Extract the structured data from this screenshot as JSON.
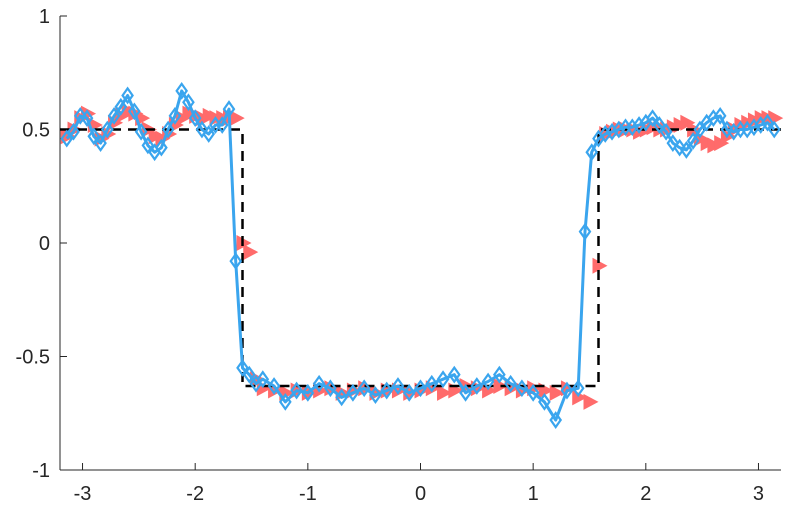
{
  "chart_data": {
    "type": "line",
    "title": "",
    "xlabel": "",
    "ylabel": "",
    "xlim": [
      -3.2,
      3.2
    ],
    "ylim": [
      -1,
      1
    ],
    "xticks": [
      -3,
      -2,
      -1,
      0,
      1,
      2,
      3
    ],
    "xtick_labels": [
      "-3",
      "-2",
      "-1",
      "0",
      "1",
      "2",
      "3"
    ],
    "yticks": [
      1,
      0.5,
      0,
      -0.5,
      -1
    ],
    "ytick_labels": [
      "1",
      "0.5",
      "0",
      "-0.5",
      "-1"
    ],
    "grid": false,
    "legend": "none",
    "series": [
      {
        "style": "dashed",
        "color": "#000000",
        "x": [
          -3.2,
          -1.58,
          -1.58,
          1.58,
          1.58,
          3.2
        ],
        "y": [
          0.5,
          0.5,
          -0.63,
          -0.63,
          0.5,
          0.5
        ]
      },
      {
        "style": "triangle-right-markers",
        "color": "#ff6b6b",
        "x": [
          -3.14,
          -3.08,
          -3.02,
          -2.96,
          -2.9,
          -2.84,
          -2.78,
          -2.72,
          -2.66,
          -2.6,
          -2.54,
          -2.48,
          -2.42,
          -2.36,
          -2.3,
          -2.24,
          -2.18,
          -2.12,
          -2.06,
          -2.0,
          -1.94,
          -1.88,
          -1.82,
          -1.76,
          -1.7,
          -1.64,
          -1.58,
          -1.52,
          -1.46,
          -1.4,
          -1.3,
          -1.2,
          -1.1,
          -1.0,
          -0.9,
          -0.8,
          -0.7,
          -0.6,
          -0.5,
          -0.4,
          -0.3,
          -0.2,
          -0.1,
          0.0,
          0.1,
          0.2,
          0.3,
          0.4,
          0.5,
          0.6,
          0.7,
          0.8,
          0.9,
          1.0,
          1.1,
          1.2,
          1.3,
          1.4,
          1.5,
          1.58,
          1.64,
          1.7,
          1.76,
          1.82,
          1.88,
          1.94,
          2.0,
          2.06,
          2.12,
          2.18,
          2.24,
          2.3,
          2.36,
          2.42,
          2.48,
          2.54,
          2.6,
          2.66,
          2.72,
          2.78,
          2.84,
          2.9,
          2.96,
          3.02,
          3.08,
          3.14
        ],
        "y": [
          0.47,
          0.5,
          0.55,
          0.57,
          0.52,
          0.46,
          0.48,
          0.53,
          0.56,
          0.58,
          0.57,
          0.55,
          0.5,
          0.47,
          0.46,
          0.48,
          0.52,
          0.55,
          0.57,
          0.56,
          0.55,
          0.56,
          0.55,
          0.55,
          0.55,
          0.55,
          0.0,
          -0.04,
          -0.6,
          -0.64,
          -0.65,
          -0.66,
          -0.65,
          -0.66,
          -0.65,
          -0.64,
          -0.66,
          -0.65,
          -0.64,
          -0.66,
          -0.65,
          -0.65,
          -0.66,
          -0.65,
          -0.64,
          -0.66,
          -0.65,
          -0.63,
          -0.64,
          -0.65,
          -0.63,
          -0.64,
          -0.65,
          -0.64,
          -0.65,
          -0.66,
          -0.64,
          -0.68,
          -0.7,
          -0.1,
          0.48,
          0.49,
          0.5,
          0.5,
          0.5,
          0.49,
          0.5,
          0.51,
          0.5,
          0.5,
          0.51,
          0.52,
          0.53,
          0.5,
          0.46,
          0.44,
          0.43,
          0.44,
          0.47,
          0.5,
          0.52,
          0.53,
          0.54,
          0.55,
          0.55,
          0.55
        ]
      },
      {
        "style": "solid-diamond-markers",
        "color": "#3aa5ee",
        "x": [
          -3.14,
          -3.08,
          -3.02,
          -2.96,
          -2.9,
          -2.84,
          -2.78,
          -2.72,
          -2.66,
          -2.6,
          -2.54,
          -2.48,
          -2.42,
          -2.36,
          -2.3,
          -2.24,
          -2.18,
          -2.12,
          -2.06,
          -2.0,
          -1.94,
          -1.88,
          -1.82,
          -1.76,
          -1.7,
          -1.64,
          -1.58,
          -1.52,
          -1.46,
          -1.4,
          -1.3,
          -1.2,
          -1.1,
          -1.0,
          -0.9,
          -0.8,
          -0.7,
          -0.6,
          -0.5,
          -0.4,
          -0.3,
          -0.2,
          -0.1,
          0.0,
          0.1,
          0.2,
          0.3,
          0.4,
          0.5,
          0.6,
          0.7,
          0.8,
          0.9,
          1.0,
          1.1,
          1.2,
          1.3,
          1.4,
          1.46,
          1.52,
          1.58,
          1.64,
          1.7,
          1.76,
          1.82,
          1.88,
          1.94,
          2.0,
          2.06,
          2.12,
          2.18,
          2.24,
          2.3,
          2.36,
          2.42,
          2.48,
          2.54,
          2.6,
          2.66,
          2.72,
          2.78,
          2.84,
          2.9,
          2.96,
          3.02,
          3.08,
          3.14
        ],
        "y": [
          0.46,
          0.49,
          0.56,
          0.55,
          0.47,
          0.44,
          0.5,
          0.56,
          0.6,
          0.65,
          0.58,
          0.49,
          0.43,
          0.4,
          0.42,
          0.5,
          0.56,
          0.67,
          0.62,
          0.55,
          0.5,
          0.48,
          0.52,
          0.52,
          0.59,
          -0.08,
          -0.55,
          -0.58,
          -0.62,
          -0.6,
          -0.63,
          -0.7,
          -0.65,
          -0.66,
          -0.62,
          -0.64,
          -0.68,
          -0.66,
          -0.64,
          -0.67,
          -0.65,
          -0.63,
          -0.66,
          -0.64,
          -0.62,
          -0.6,
          -0.58,
          -0.66,
          -0.63,
          -0.61,
          -0.58,
          -0.62,
          -0.64,
          -0.66,
          -0.7,
          -0.78,
          -0.65,
          -0.64,
          0.05,
          0.4,
          0.46,
          0.48,
          0.49,
          0.5,
          0.51,
          0.51,
          0.52,
          0.53,
          0.55,
          0.52,
          0.49,
          0.44,
          0.42,
          0.41,
          0.45,
          0.5,
          0.53,
          0.55,
          0.56,
          0.5,
          0.49,
          0.5,
          0.5,
          0.51,
          0.52,
          0.53,
          0.5
        ]
      }
    ]
  }
}
